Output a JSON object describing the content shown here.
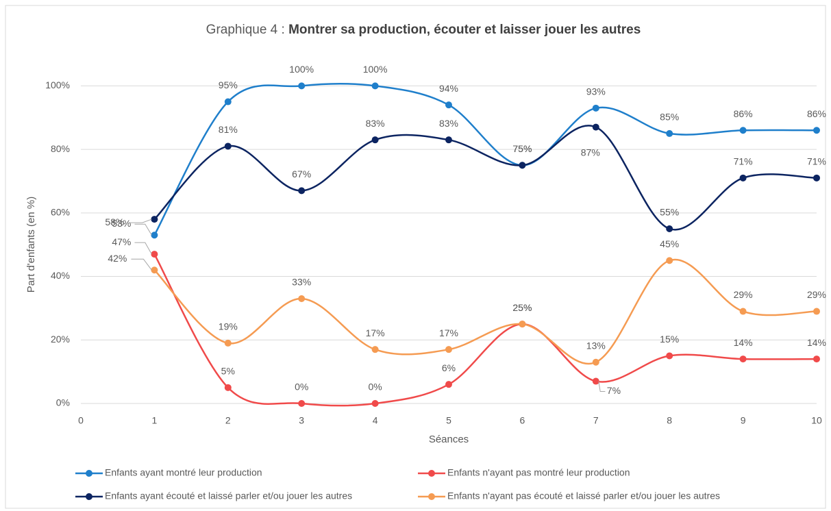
{
  "chart_data": {
    "type": "line",
    "title": "Graphique 4 :",
    "title_emphasis": "Montrer sa production, écouter et laisser jouer les autres",
    "xlabel": "Séances",
    "ylabel": "Part d'enfants (en %)",
    "x": [
      1,
      2,
      3,
      4,
      5,
      6,
      7,
      8,
      9,
      10
    ],
    "xlim": [
      0,
      10
    ],
    "xticks": [
      0,
      1,
      2,
      3,
      4,
      5,
      6,
      7,
      8,
      9,
      10
    ],
    "ylim": [
      0,
      110
    ],
    "yticks": [
      {
        "value": 0,
        "label": "0%"
      },
      {
        "value": 20,
        "label": "20%"
      },
      {
        "value": 40,
        "label": "40%"
      },
      {
        "value": 60,
        "label": "60%"
      },
      {
        "value": 80,
        "label": "80%"
      },
      {
        "value": 100,
        "label": "100%"
      }
    ],
    "grid": true,
    "smooth": true,
    "legend": "bottom",
    "series": [
      {
        "name": "Enfants ayant montré leur production",
        "color": "#1f7fcb",
        "values": [
          53,
          95,
          100,
          100,
          94,
          75,
          93,
          85,
          86,
          86
        ],
        "value_labels": [
          "53%",
          "95%",
          "100%",
          "100%",
          "94%",
          "75%",
          "93%",
          "85%",
          "86%",
          "86%"
        ]
      },
      {
        "name": "Enfants n'ayant pas montré leur production",
        "color": "#f04a4a",
        "values": [
          47,
          5,
          0,
          0,
          6,
          25,
          7,
          15,
          14,
          14
        ],
        "value_labels": [
          "47%",
          "5%",
          "0%",
          "0%",
          "6%",
          "25%",
          "7%",
          "15%",
          "14%",
          "14%"
        ]
      },
      {
        "name": "Enfants ayant écouté et laissé parler et/ou jouer les autres",
        "color": "#0c2461",
        "values": [
          58,
          81,
          67,
          83,
          83,
          75,
          87,
          55,
          71,
          71
        ],
        "value_labels": [
          "58%",
          "81%",
          "67%",
          "83%",
          "83%",
          "75%",
          "87%",
          "55%",
          "71%",
          "71%"
        ]
      },
      {
        "name": "Enfants n'ayant pas écouté et laissé parler et/ou jouer les autres",
        "color": "#f59b52",
        "values": [
          42,
          19,
          33,
          17,
          17,
          25,
          13,
          45,
          29,
          29
        ],
        "value_labels": [
          "42%",
          "19%",
          "33%",
          "17%",
          "17%",
          "25%",
          "13%",
          "45%",
          "29%",
          "29%"
        ]
      }
    ]
  }
}
